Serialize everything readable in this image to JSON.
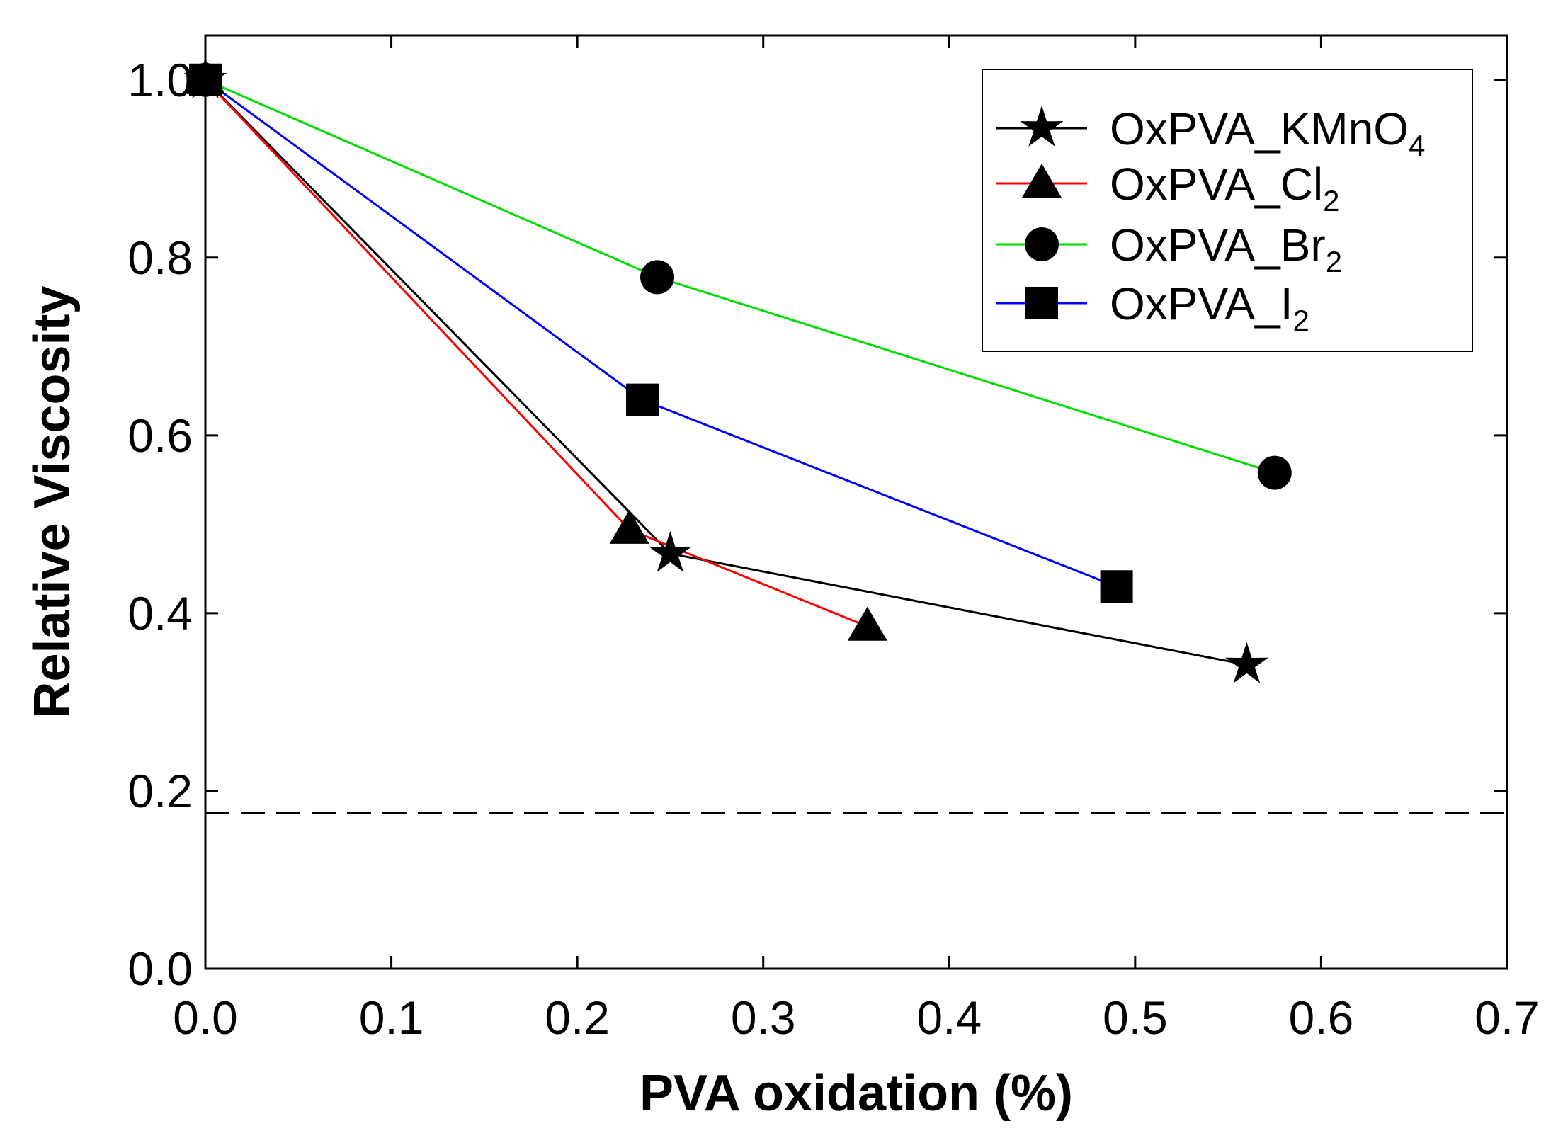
{
  "chart_data": {
    "type": "line",
    "title": "",
    "xlabel": "PVA oxidation (%)",
    "ylabel": "Relative Viscosity",
    "xlim": [
      0.0,
      0.7
    ],
    "ylim": [
      0.0,
      1.05
    ],
    "xticks": [
      "0.0",
      "0.1",
      "0.2",
      "0.3",
      "0.4",
      "0.5",
      "0.6",
      "0.7"
    ],
    "yticks": [
      "0.0",
      "0.2",
      "0.4",
      "0.6",
      "0.8",
      "1.0"
    ],
    "grid": false,
    "legend_position": "top-right",
    "reference_line": {
      "y": 0.175,
      "style": "dashed",
      "color": "#000000"
    },
    "series": [
      {
        "name": "OxPVA_KMnO4",
        "label_main": "OxPVA_KMnO",
        "label_sub": "4",
        "marker": "star",
        "color": "#000000",
        "x": [
          0.0,
          0.25,
          0.56
        ],
        "y": [
          1.0,
          0.467,
          0.342
        ]
      },
      {
        "name": "OxPVA_Cl2",
        "label_main": "OxPVA_Cl",
        "label_sub": "2",
        "marker": "triangle",
        "color": "#ff0000",
        "x": [
          0.0,
          0.228,
          0.356
        ],
        "y": [
          1.0,
          0.494,
          0.385
        ]
      },
      {
        "name": "OxPVA_Br2",
        "label_main": "OxPVA_Br",
        "label_sub": "2",
        "marker": "circle",
        "color": "#00dd00",
        "x": [
          0.0,
          0.243,
          0.575
        ],
        "y": [
          1.0,
          0.778,
          0.558
        ]
      },
      {
        "name": "OxPVA_I2",
        "label_main": "OxPVA_I",
        "label_sub": "2",
        "marker": "square",
        "color": "#0000ff",
        "x": [
          0.0,
          0.235,
          0.49
        ],
        "y": [
          1.0,
          0.64,
          0.43
        ]
      }
    ]
  }
}
